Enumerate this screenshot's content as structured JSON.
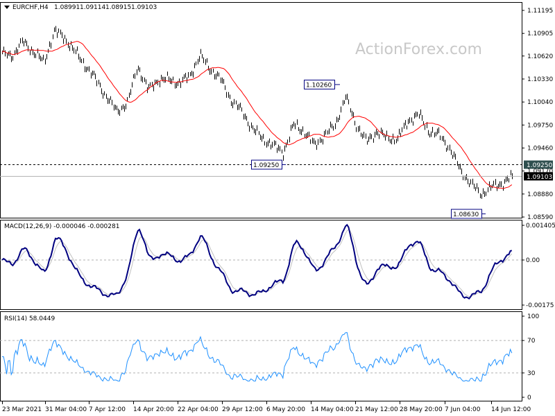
{
  "chart_data": [
    {
      "type": "bar",
      "title": "EURCHF,H4",
      "ohlc_header": {
        "open": "1.08991",
        "high": "1.09114",
        "low": "1.08915",
        "close": "1.09103"
      },
      "watermark": "ActionForex.com",
      "x_ticks": [
        "23 Mar 2021",
        "31 Mar 04:00",
        "7 Apr 12:00",
        "14 Apr 20:00",
        "22 Apr 04:00",
        "29 Apr 12:00",
        "6 May 20:00",
        "14 May 04:00",
        "21 May 12:00",
        "28 May 20:00",
        "7 Jun 04:00",
        "14 Jun 12:00"
      ],
      "y_ticks": [
        "1.11195",
        "1.10905",
        "1.10620",
        "1.10330",
        "1.10040",
        "1.09750",
        "1.09460",
        "1.09170",
        "1.08880",
        "1.08590"
      ],
      "ylim": [
        1.0859,
        1.11195
      ],
      "close_approx": [
        1.10644,
        1.10627,
        1.10802,
        1.10671,
        1.1054,
        1.10933,
        1.10845,
        1.10671,
        1.10496,
        1.10321,
        1.10103,
        1.09928,
        1.10015,
        1.10496,
        1.1019,
        1.10321,
        1.10321,
        1.10277,
        1.10365,
        1.10627,
        1.10452,
        1.10321,
        1.10059,
        1.09928,
        1.09709,
        1.09578,
        1.09491,
        1.09403,
        1.09753,
        1.09666,
        1.09491,
        1.09622,
        1.09753,
        1.10103,
        1.09753,
        1.09534,
        1.09666,
        1.09578,
        1.09578,
        1.09797,
        1.09884,
        1.09666,
        1.09622,
        1.09447,
        1.09185,
        1.0901,
        1.08879,
        1.08966,
        1.0901,
        1.09103
      ],
      "moving_average_color": "#ff0000",
      "bar_color": "#000000",
      "levels": {
        "dashed_level": 1.0925,
        "current_price": 1.09103,
        "current_price_label": "1.09103",
        "dashed_level_label": "1.09250"
      },
      "annotations": [
        {
          "label": "1.10260",
          "value": 1.1026
        },
        {
          "label": "1.09250",
          "value": 1.0925
        },
        {
          "label": "1.08630",
          "value": 1.0863
        }
      ]
    },
    {
      "type": "line",
      "title": "MACD(12,26,9) -0.000046 -0.000281",
      "y_ticks": [
        "0.001405",
        "0.00",
        "-0.00175"
      ],
      "ylim": [
        -0.00175,
        0.001405
      ],
      "series_colors": {
        "macd": "#000080",
        "signal": "#c0c0c0"
      }
    },
    {
      "type": "line",
      "title": "RSI(14) 58.0449",
      "y_ticks": [
        "100",
        "70",
        "30",
        "0"
      ],
      "ylim": [
        0,
        100
      ],
      "levels": [
        70,
        30
      ],
      "series_colors": {
        "rsi": "#1e90ff"
      }
    }
  ]
}
